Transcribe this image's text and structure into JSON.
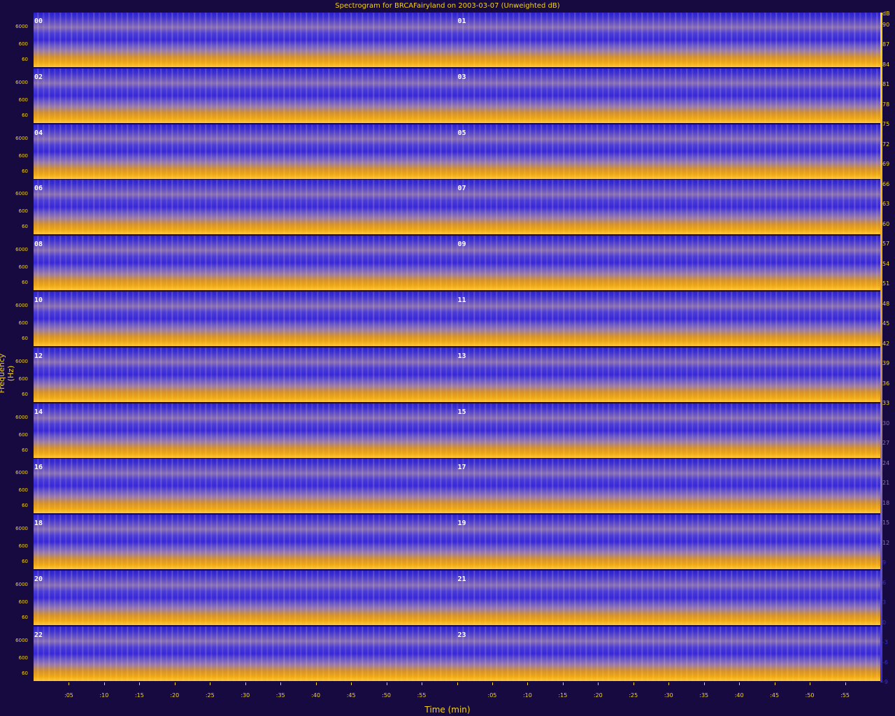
{
  "chart_data": {
    "type": "heatmap",
    "title": "Spectrogram for BRCAFairyland on 2003-03-07 (Unweighted dB)",
    "xlabel": "Time (min)",
    "ylabel": "Frequency (Hz)",
    "x_tick_labels": [
      ":05",
      ":10",
      ":15",
      ":20",
      ":25",
      ":30",
      ":35",
      ":40",
      ":45",
      ":50",
      ":55",
      "",
      ":05",
      ":10",
      ":15",
      ":20",
      ":25",
      ":30",
      ":35",
      ":40",
      ":45",
      ":50",
      ":55"
    ],
    "y_tick_labels": [
      "6000",
      "600",
      "60"
    ],
    "hour_labels": [
      "00",
      "01",
      "02",
      "03",
      "04",
      "05",
      "06",
      "07",
      "08",
      "09",
      "10",
      "11",
      "12",
      "13",
      "14",
      "15",
      "16",
      "17",
      "18",
      "19",
      "20",
      "21",
      "22",
      "23"
    ],
    "colorbar": {
      "unit": "dB",
      "ticks": [
        90,
        87,
        84,
        81,
        78,
        75,
        72,
        69,
        66,
        63,
        60,
        57,
        54,
        51,
        48,
        45,
        42,
        39,
        36,
        33,
        30,
        27,
        24,
        21,
        18,
        15,
        12,
        9,
        6,
        3,
        0,
        -3,
        -6,
        -9
      ],
      "low_color": "#3a2fd2",
      "high_color": "#f5d21e"
    },
    "colors": {
      "background": "#160a40",
      "text": "#f5d21e",
      "low": "#3a2fd2",
      "mid": "#8a70b4",
      "high": "#f0a818"
    },
    "grid": false
  }
}
